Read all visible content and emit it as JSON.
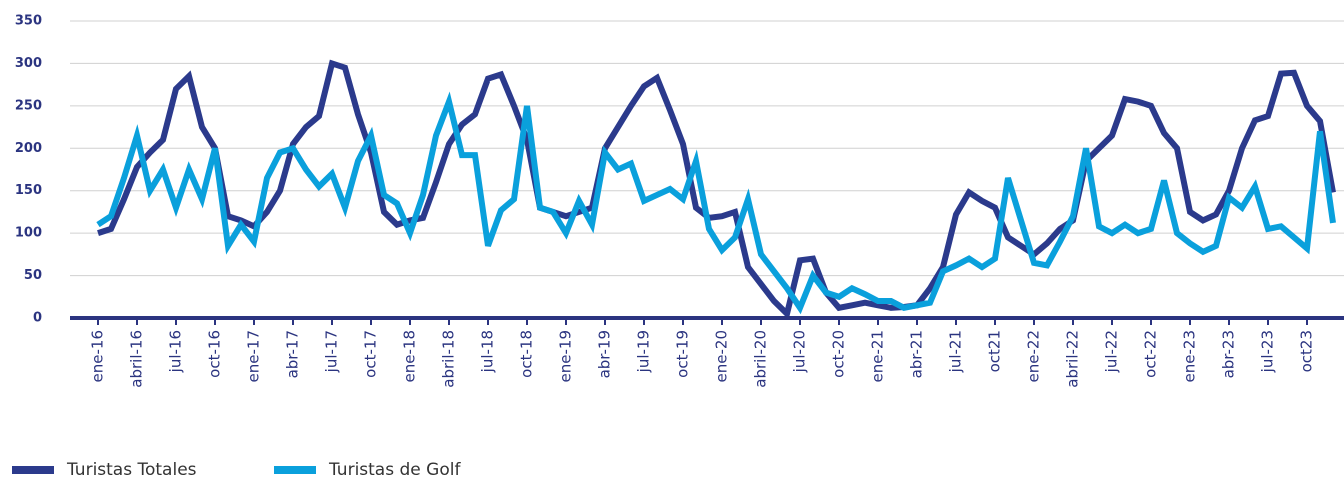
{
  "chart_data": {
    "type": "line",
    "categories": [
      "ene-16",
      null,
      null,
      "abril-16",
      null,
      null,
      "jul-16",
      null,
      null,
      "oct-16",
      null,
      null,
      "ene-17",
      null,
      null,
      "abr-17",
      null,
      null,
      "jul-17",
      null,
      null,
      "oct-17",
      null,
      null,
      "ene-18",
      null,
      null,
      "abril-18",
      null,
      null,
      "jul-18",
      null,
      null,
      "oct-18",
      null,
      null,
      "ene-19",
      null,
      null,
      "abr-19",
      null,
      null,
      "jul-19",
      null,
      null,
      "oct-19",
      null,
      null,
      "ene-20",
      null,
      null,
      "abril-20",
      null,
      null,
      "jul-20",
      null,
      null,
      "oct-20",
      null,
      null,
      "ene-21",
      null,
      null,
      "abr-21",
      null,
      null,
      "jul-21",
      null,
      null,
      "oct21",
      null,
      null,
      "ene-22",
      null,
      null,
      "abril-22",
      null,
      null,
      "jul-22",
      null,
      null,
      "oct-22",
      null,
      null,
      "ene-23",
      null,
      null,
      "abr-23",
      null,
      null,
      "jul-23",
      null,
      null,
      "oct23",
      null,
      null
    ],
    "series": [
      {
        "name": "Turistas Totales",
        "color": "#2b3a8c",
        "values": [
          100,
          105,
          140,
          178,
          195,
          210,
          270,
          285,
          225,
          200,
          120,
          115,
          108,
          125,
          150,
          205,
          225,
          238,
          300,
          295,
          240,
          195,
          125,
          110,
          115,
          118,
          160,
          205,
          228,
          240,
          282,
          287,
          250,
          210,
          130,
          125,
          120,
          125,
          130,
          200,
          225,
          250,
          273,
          283,
          245,
          205,
          130,
          118,
          120,
          125,
          60,
          40,
          20,
          5,
          68,
          70,
          30,
          12,
          15,
          18,
          15,
          12,
          13,
          15,
          35,
          60,
          122,
          148,
          138,
          130,
          95,
          85,
          75,
          88,
          105,
          115,
          185,
          200,
          215,
          258,
          255,
          250,
          218,
          200,
          125,
          115,
          122,
          150,
          200,
          233,
          238,
          288,
          289,
          250,
          232,
          148
        ]
      },
      {
        "name": "Turistas de Golf",
        "color": "#0aa0dc",
        "values": [
          110,
          120,
          165,
          215,
          150,
          175,
          130,
          175,
          140,
          200,
          85,
          110,
          90,
          165,
          195,
          200,
          175,
          155,
          170,
          130,
          185,
          215,
          145,
          135,
          100,
          145,
          215,
          255,
          192,
          192,
          85,
          127,
          140,
          250,
          130,
          125,
          100,
          138,
          110,
          195,
          175,
          182,
          138,
          145,
          152,
          140,
          185,
          105,
          80,
          95,
          140,
          75,
          55,
          35,
          12,
          50,
          30,
          25,
          35,
          28,
          20,
          20,
          12,
          15,
          18,
          55,
          62,
          70,
          60,
          70,
          165,
          115,
          65,
          62,
          90,
          120,
          200,
          108,
          100,
          110,
          100,
          105,
          162,
          100,
          88,
          78,
          85,
          142,
          130,
          155,
          105,
          108,
          95,
          82,
          220,
          112
        ]
      }
    ],
    "ylim": [
      0,
      350
    ],
    "yticks": [
      0,
      50,
      100,
      150,
      200,
      250,
      300,
      350
    ],
    "grid": true,
    "legend": "bottom-left"
  }
}
